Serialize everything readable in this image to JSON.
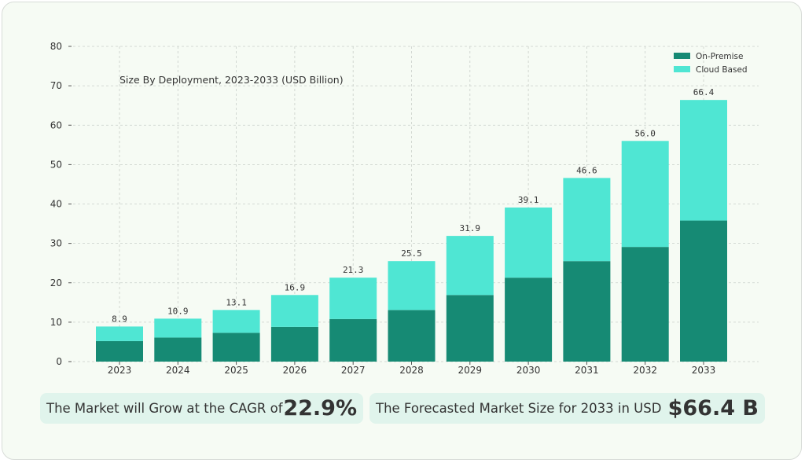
{
  "chart_data": {
    "type": "bar",
    "stacked": true,
    "title": "Size By Deployment, 2023-2033 (USD Billion)",
    "xlabel": "",
    "ylabel": "",
    "categories": [
      "2023",
      "2024",
      "2025",
      "2026",
      "2027",
      "2028",
      "2029",
      "2030",
      "2031",
      "2032",
      "2033"
    ],
    "series": [
      {
        "name": "On-Premise",
        "color": "#168a74",
        "values": [
          5.2,
          6.1,
          7.3,
          8.8,
          10.8,
          13.1,
          16.9,
          21.3,
          25.5,
          29.1,
          35.8
        ]
      },
      {
        "name": "Cloud Based",
        "color": "#4fe6d3",
        "values": [
          3.7,
          4.8,
          5.8,
          8.1,
          10.5,
          12.4,
          15.0,
          17.8,
          21.1,
          26.9,
          30.6
        ]
      }
    ],
    "totals": [
      "8.9",
      "10.9",
      "13.1",
      "16.9",
      "21.3",
      "25.5",
      "31.9",
      "39.1",
      "46.6",
      "56.0",
      "66.4"
    ],
    "ylim": [
      0,
      80
    ],
    "yticks": [
      0,
      10,
      20,
      30,
      40,
      50,
      60,
      70,
      80
    ],
    "grid": true,
    "legend_position": "top-right"
  },
  "highlights": {
    "cagr_label": "The Market will Grow at the CAGR of",
    "cagr_value": "22.9%",
    "forecast_label": "The Forecasted Market Size for 2033 in USD",
    "forecast_value": "$66.4 B"
  }
}
